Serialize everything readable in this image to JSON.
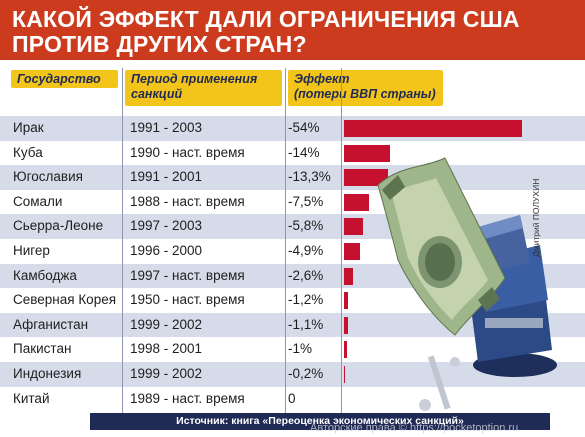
{
  "title": {
    "line1": "КАКОЙ ЭФФЕКТ ДАЛИ ОГРАНИЧЕНИЯ США",
    "line2": "ПРОТИВ ДРУГИХ СТРАН?"
  },
  "headers": {
    "country": "Государство",
    "period_line1": "Период применения",
    "period_line2": "санкций",
    "effect_line1": "Эффект",
    "effect_line2": "(потери ВВП страны)"
  },
  "chart_data": {
    "type": "bar",
    "title": "КАКОЙ ЭФФЕКТ ДАЛИ ОГРАНИЧЕНИЯ США ПРОТИВ ДРУГИХ СТРАН?",
    "categories": [
      "Ирак",
      "Куба",
      "Югославия",
      "Сомали",
      "Сьерра-Леоне",
      "Нигер",
      "Камбоджа",
      "Северная Корея",
      "Афганистан",
      "Пакистан",
      "Индонезия",
      "Китай"
    ],
    "periods": [
      "1991 - 2003",
      "1990 - наст. время",
      "1991 - 2001",
      "1988 - наст. время",
      "1997 - 2003",
      "1996 - 2000",
      "1997 - наст. время",
      "1950 - наст. время",
      "1999 - 2002",
      "1998 - 2001",
      "1999 - 2002",
      "1989 - наст. время"
    ],
    "labels": [
      "-54%",
      "-14%",
      "-13,3%",
      "-7,5%",
      "-5,8%",
      "-4,9%",
      "-2,6%",
      "-1,2%",
      "-1,1%",
      "-1%",
      "-0,2%",
      "0"
    ],
    "values": [
      54,
      14,
      13.3,
      7.5,
      5.8,
      4.9,
      2.6,
      1.2,
      1.1,
      1,
      0.2,
      0
    ],
    "bar_color": "#c5102f",
    "row_colors": [
      "#d6dbe9",
      "#ffffff"
    ],
    "xlim": [
      0,
      54
    ]
  },
  "author": "Дмитрий ПОЛУХИН",
  "source": "Источник: книга «Переоценка экономических санкций»",
  "watermark": "Авторские права © https://pocketoption.ru",
  "colors": {
    "title_bg": "#cd3b1f",
    "header_bg": "#f3c51a",
    "header_text": "#1f2a55",
    "source_bg": "#1f2a55"
  },
  "illustration": [
    "dollar-banknote",
    "bench-vise"
  ]
}
